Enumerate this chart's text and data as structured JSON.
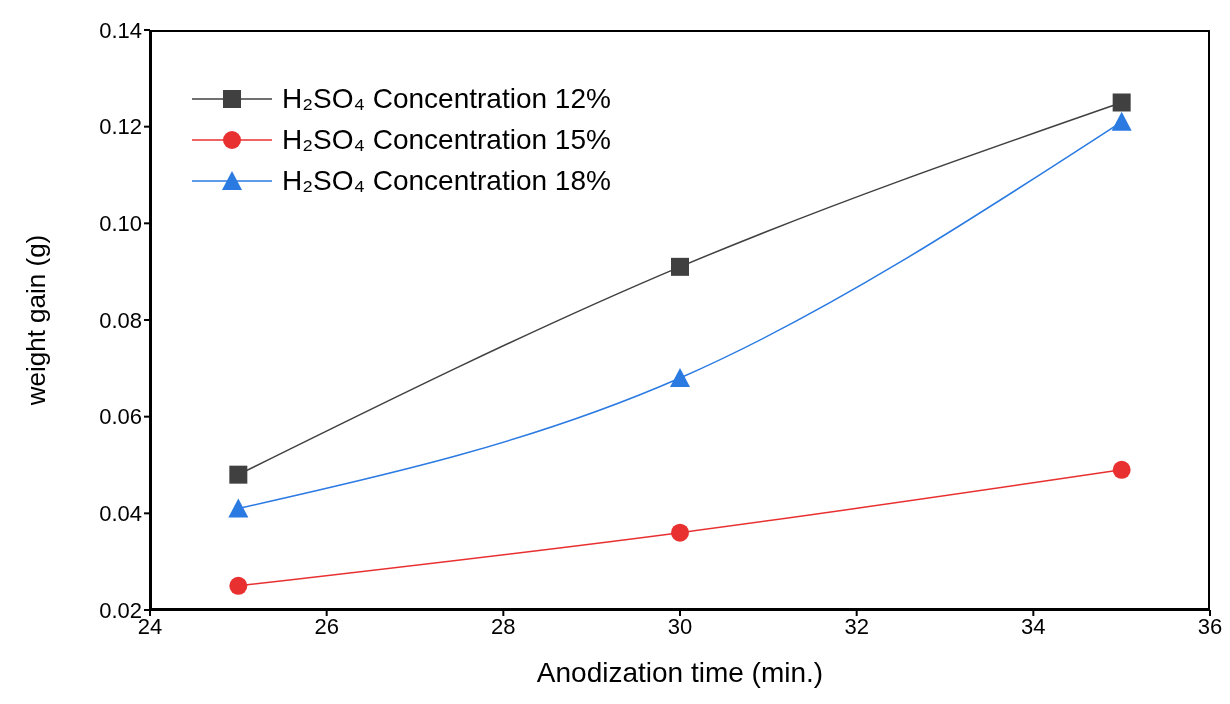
{
  "chart_data": {
    "type": "line",
    "xlabel": "Anodization time (min.)",
    "ylabel": "weight gain (g)",
    "x": [
      25,
      30,
      35
    ],
    "series": [
      {
        "name": "H₂SO₄ Concentration 12%",
        "color": "#404040",
        "marker": "square",
        "values": [
          0.048,
          0.091,
          0.125
        ]
      },
      {
        "name": "H₂SO₄ Concentration 15%",
        "color": "#e83030",
        "marker": "circle",
        "values": [
          0.025,
          0.036,
          0.049
        ]
      },
      {
        "name": "H₂SO₄ Concentration 18%",
        "color": "#2a7ae2",
        "marker": "triangle",
        "values": [
          0.041,
          0.068,
          0.121
        ]
      }
    ],
    "xlim": [
      24,
      36
    ],
    "xticks": [
      24,
      26,
      28,
      30,
      32,
      34,
      36
    ],
    "ylim": [
      0.02,
      0.14
    ],
    "yticks": [
      0.02,
      0.04,
      0.06,
      0.08,
      {
        "value": 0.1,
        "label": "0.10"
      },
      0.12,
      0.14
    ],
    "grid": false,
    "legend": "top left",
    "line_style": "solid"
  }
}
